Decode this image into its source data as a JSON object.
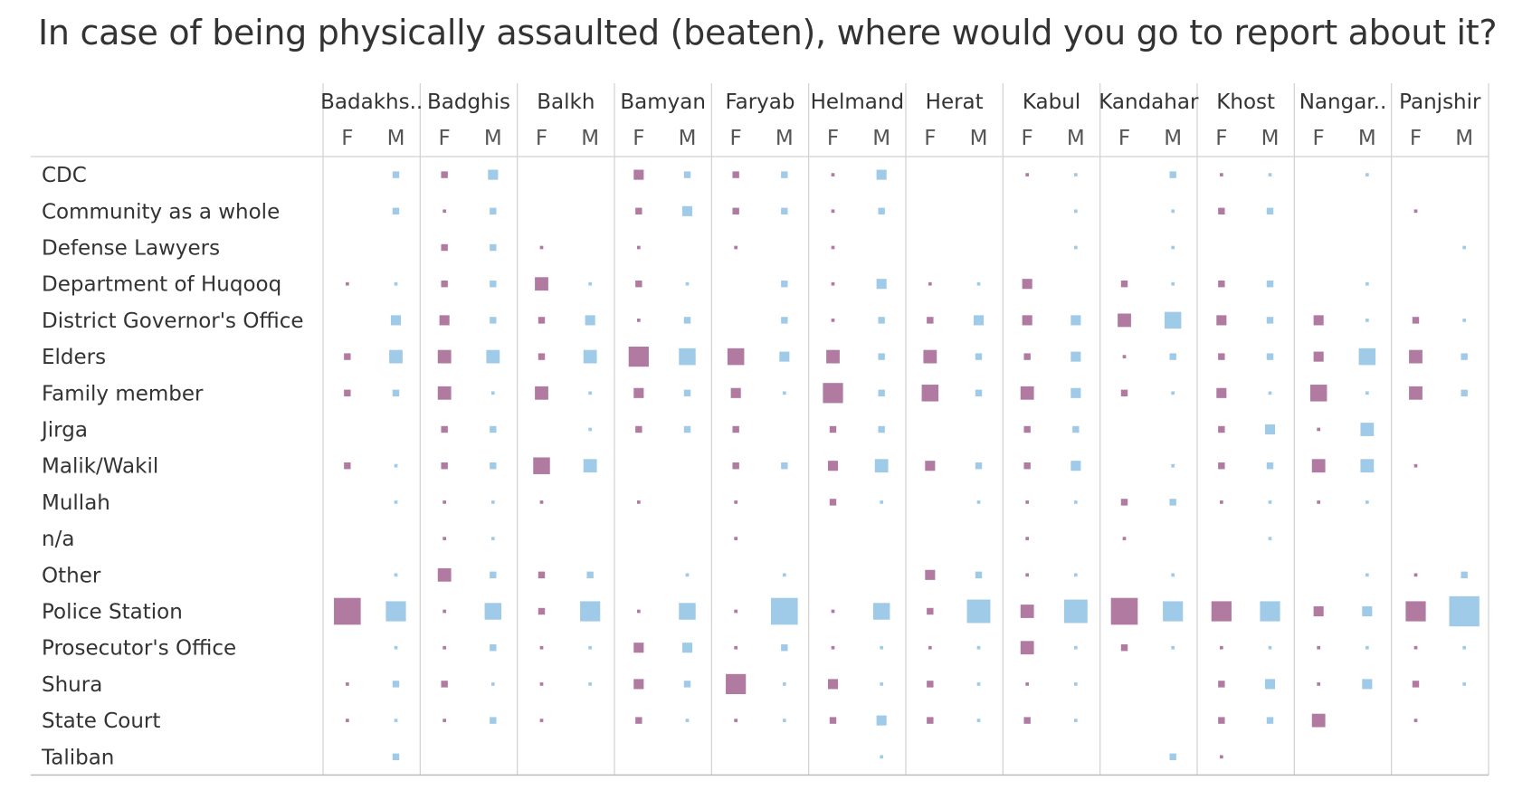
{
  "chart_data": {
    "type": "heatmap",
    "title": "In case of being physically assaulted (beaten), where would you go to report about it?",
    "provinces": [
      "Badakhs..",
      "Badghis",
      "Balkh",
      "Bamyan",
      "Faryab",
      "Helmand",
      "Herat",
      "Kabul",
      "Kandahar",
      "Khost",
      "Nangar..",
      "Panjshir"
    ],
    "genders": [
      "F",
      "M"
    ],
    "categories": [
      "CDC",
      "Community as a whole",
      "Defense Lawyers",
      "Department of Huqooq",
      "District Governor's Office",
      "Elders",
      "Family member",
      "Jirga",
      "Malik/Wakil",
      "Mullah",
      "n/a",
      "Other",
      "Police Station",
      "Prosecutor's Office",
      "Shura",
      "State Court",
      "Taliban"
    ],
    "colors": {
      "F": "#b07aa1",
      "M": "#a0cbe8"
    },
    "size_encoding": "relative magnitude 0-10",
    "values": [
      [
        [
          0,
          2
        ],
        [
          2,
          3
        ],
        [
          0,
          0
        ],
        [
          3,
          2
        ],
        [
          2,
          2
        ],
        [
          1,
          3
        ],
        [
          0,
          0
        ],
        [
          1,
          1
        ],
        [
          0,
          2
        ],
        [
          1,
          1
        ],
        [
          0,
          1
        ],
        [
          0,
          0
        ]
      ],
      [
        [
          0,
          2
        ],
        [
          1,
          2
        ],
        [
          0,
          0
        ],
        [
          2,
          3
        ],
        [
          2,
          2
        ],
        [
          1,
          2
        ],
        [
          0,
          0
        ],
        [
          0,
          1
        ],
        [
          0,
          1
        ],
        [
          2,
          2
        ],
        [
          0,
          0
        ],
        [
          1,
          0
        ]
      ],
      [
        [
          0,
          0
        ],
        [
          2,
          2
        ],
        [
          1,
          0
        ],
        [
          1,
          0
        ],
        [
          1,
          0
        ],
        [
          1,
          0
        ],
        [
          0,
          0
        ],
        [
          0,
          1
        ],
        [
          0,
          1
        ],
        [
          0,
          0
        ],
        [
          0,
          0
        ],
        [
          0,
          1
        ]
      ],
      [
        [
          1,
          1
        ],
        [
          2,
          2
        ],
        [
          4,
          1
        ],
        [
          2,
          1
        ],
        [
          0,
          2
        ],
        [
          1,
          3
        ],
        [
          1,
          1
        ],
        [
          3,
          0
        ],
        [
          2,
          1
        ],
        [
          2,
          2
        ],
        [
          0,
          1
        ],
        [
          0,
          0
        ]
      ],
      [
        [
          0,
          3
        ],
        [
          3,
          2
        ],
        [
          2,
          3
        ],
        [
          1,
          2
        ],
        [
          0,
          2
        ],
        [
          1,
          2
        ],
        [
          2,
          3
        ],
        [
          3,
          3
        ],
        [
          4,
          5
        ],
        [
          3,
          2
        ],
        [
          3,
          1
        ],
        [
          2,
          1
        ]
      ],
      [
        [
          2,
          4
        ],
        [
          4,
          4
        ],
        [
          2,
          4
        ],
        [
          6,
          5
        ],
        [
          5,
          3
        ],
        [
          4,
          2
        ],
        [
          4,
          2
        ],
        [
          2,
          3
        ],
        [
          1,
          2
        ],
        [
          2,
          2
        ],
        [
          3,
          5
        ],
        [
          4,
          2
        ]
      ],
      [
        [
          2,
          2
        ],
        [
          4,
          1
        ],
        [
          4,
          1
        ],
        [
          3,
          2
        ],
        [
          3,
          1
        ],
        [
          6,
          2
        ],
        [
          5,
          2
        ],
        [
          4,
          3
        ],
        [
          2,
          1
        ],
        [
          3,
          1
        ],
        [
          5,
          1
        ],
        [
          4,
          2
        ]
      ],
      [
        [
          0,
          0
        ],
        [
          2,
          2
        ],
        [
          0,
          1
        ],
        [
          2,
          2
        ],
        [
          2,
          0
        ],
        [
          2,
          2
        ],
        [
          0,
          0
        ],
        [
          2,
          2
        ],
        [
          0,
          0
        ],
        [
          2,
          3
        ],
        [
          1,
          4
        ],
        [
          0,
          0
        ]
      ],
      [
        [
          2,
          1
        ],
        [
          2,
          2
        ],
        [
          5,
          4
        ],
        [
          0,
          0
        ],
        [
          2,
          2
        ],
        [
          3,
          4
        ],
        [
          3,
          2
        ],
        [
          2,
          3
        ],
        [
          0,
          1
        ],
        [
          2,
          2
        ],
        [
          4,
          4
        ],
        [
          1,
          0
        ]
      ],
      [
        [
          0,
          1
        ],
        [
          1,
          1
        ],
        [
          1,
          0
        ],
        [
          1,
          0
        ],
        [
          1,
          0
        ],
        [
          2,
          1
        ],
        [
          0,
          1
        ],
        [
          1,
          1
        ],
        [
          2,
          2
        ],
        [
          1,
          1
        ],
        [
          1,
          1
        ],
        [
          0,
          0
        ]
      ],
      [
        [
          0,
          0
        ],
        [
          1,
          1
        ],
        [
          0,
          0
        ],
        [
          0,
          0
        ],
        [
          1,
          0
        ],
        [
          0,
          0
        ],
        [
          0,
          0
        ],
        [
          1,
          0
        ],
        [
          1,
          0
        ],
        [
          0,
          1
        ],
        [
          0,
          0
        ],
        [
          0,
          0
        ]
      ],
      [
        [
          0,
          1
        ],
        [
          4,
          2
        ],
        [
          2,
          2
        ],
        [
          0,
          1
        ],
        [
          0,
          1
        ],
        [
          0,
          0
        ],
        [
          3,
          2
        ],
        [
          1,
          1
        ],
        [
          0,
          1
        ],
        [
          0,
          0
        ],
        [
          0,
          1
        ],
        [
          1,
          2
        ]
      ],
      [
        [
          8,
          6
        ],
        [
          1,
          5
        ],
        [
          2,
          6
        ],
        [
          1,
          5
        ],
        [
          1,
          8
        ],
        [
          1,
          5
        ],
        [
          2,
          7
        ],
        [
          4,
          7
        ],
        [
          8,
          6
        ],
        [
          6,
          6
        ],
        [
          3,
          3
        ],
        [
          6,
          9
        ]
      ],
      [
        [
          0,
          1
        ],
        [
          1,
          2
        ],
        [
          1,
          1
        ],
        [
          3,
          3
        ],
        [
          1,
          2
        ],
        [
          1,
          1
        ],
        [
          1,
          1
        ],
        [
          4,
          1
        ],
        [
          2,
          1
        ],
        [
          1,
          1
        ],
        [
          1,
          1
        ],
        [
          1,
          1
        ]
      ],
      [
        [
          1,
          2
        ],
        [
          2,
          1
        ],
        [
          1,
          1
        ],
        [
          3,
          2
        ],
        [
          6,
          1
        ],
        [
          3,
          1
        ],
        [
          2,
          1
        ],
        [
          1,
          1
        ],
        [
          0,
          0
        ],
        [
          2,
          3
        ],
        [
          1,
          3
        ],
        [
          2,
          1
        ]
      ],
      [
        [
          1,
          1
        ],
        [
          1,
          2
        ],
        [
          1,
          0
        ],
        [
          2,
          1
        ],
        [
          1,
          1
        ],
        [
          2,
          3
        ],
        [
          2,
          1
        ],
        [
          2,
          1
        ],
        [
          0,
          0
        ],
        [
          2,
          2
        ],
        [
          4,
          0
        ],
        [
          1,
          0
        ]
      ],
      [
        [
          0,
          2
        ],
        [
          0,
          0
        ],
        [
          0,
          0
        ],
        [
          0,
          0
        ],
        [
          0,
          0
        ],
        [
          0,
          1
        ],
        [
          0,
          0
        ],
        [
          0,
          0
        ],
        [
          0,
          2
        ],
        [
          1,
          0
        ],
        [
          0,
          0
        ],
        [
          0,
          0
        ]
      ]
    ]
  }
}
